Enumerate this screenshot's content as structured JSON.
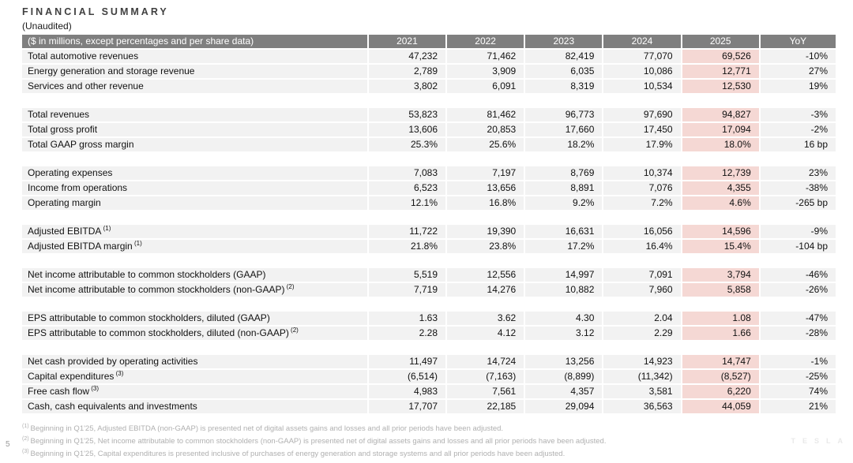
{
  "slide": {
    "title": "FINANCIAL SUMMARY",
    "subtitle": "(Unaudited)",
    "page_number": "5",
    "brand": "TESLA"
  },
  "colors": {
    "header_bg": "#7f7f7f",
    "header_text": "#ffffff",
    "row_bg": "#f2f2f2",
    "highlight_bg": "#f5d8d4",
    "text": "#1a1a1a",
    "title": "#404040",
    "footnote": "#b0b0b0",
    "brand": "#e9e9e9"
  },
  "table": {
    "header": {
      "label": "($ in millions, except percentages and per share data)",
      "years": [
        "2021",
        "2022",
        "2023",
        "2024",
        "2025",
        "YoY"
      ]
    },
    "rows": [
      {
        "type": "data",
        "label": "Total automotive revenues",
        "sup": "",
        "values": [
          "47,232",
          "71,462",
          "82,419",
          "77,070",
          "69,526",
          "-10%"
        ]
      },
      {
        "type": "data",
        "label": "Energy generation and storage revenue",
        "sup": "",
        "values": [
          "2,789",
          "3,909",
          "6,035",
          "10,086",
          "12,771",
          "27%"
        ]
      },
      {
        "type": "data",
        "label": "Services and other revenue",
        "sup": "",
        "values": [
          "3,802",
          "6,091",
          "8,319",
          "10,534",
          "12,530",
          "19%"
        ]
      },
      {
        "type": "spacer"
      },
      {
        "type": "data",
        "label": "Total revenues",
        "sup": "",
        "values": [
          "53,823",
          "81,462",
          "96,773",
          "97,690",
          "94,827",
          "-3%"
        ]
      },
      {
        "type": "data",
        "label": "Total gross profit",
        "sup": "",
        "values": [
          "13,606",
          "20,853",
          "17,660",
          "17,450",
          "17,094",
          "-2%"
        ]
      },
      {
        "type": "data",
        "label": "Total GAAP gross margin",
        "sup": "",
        "values": [
          "25.3%",
          "25.6%",
          "18.2%",
          "17.9%",
          "18.0%",
          "16 bp"
        ]
      },
      {
        "type": "spacer"
      },
      {
        "type": "data",
        "label": "Operating expenses",
        "sup": "",
        "values": [
          "7,083",
          "7,197",
          "8,769",
          "10,374",
          "12,739",
          "23%"
        ]
      },
      {
        "type": "data",
        "label": "Income from operations",
        "sup": "",
        "values": [
          "6,523",
          "13,656",
          "8,891",
          "7,076",
          "4,355",
          "-38%"
        ]
      },
      {
        "type": "data",
        "label": "Operating margin",
        "sup": "",
        "values": [
          "12.1%",
          "16.8%",
          "9.2%",
          "7.2%",
          "4.6%",
          "-265 bp"
        ]
      },
      {
        "type": "spacer"
      },
      {
        "type": "data",
        "label": "Adjusted EBITDA",
        "sup": "(1)",
        "values": [
          "11,722",
          "19,390",
          "16,631",
          "16,056",
          "14,596",
          "-9%"
        ]
      },
      {
        "type": "data",
        "label": "Adjusted EBITDA margin",
        "sup": "(1)",
        "values": [
          "21.8%",
          "23.8%",
          "17.2%",
          "16.4%",
          "15.4%",
          "-104 bp"
        ]
      },
      {
        "type": "spacer"
      },
      {
        "type": "data",
        "label": "Net income attributable to common stockholders (GAAP)",
        "sup": "",
        "values": [
          "5,519",
          "12,556",
          "14,997",
          "7,091",
          "3,794",
          "-46%"
        ]
      },
      {
        "type": "data",
        "label": "Net income attributable to common stockholders (non-GAAP)",
        "sup": "(2)",
        "values": [
          "7,719",
          "14,276",
          "10,882",
          "7,960",
          "5,858",
          "-26%"
        ]
      },
      {
        "type": "spacer"
      },
      {
        "type": "data",
        "label": "EPS attributable to common stockholders, diluted (GAAP)",
        "sup": "",
        "values": [
          "1.63",
          "3.62",
          "4.30",
          "2.04",
          "1.08",
          "-47%"
        ]
      },
      {
        "type": "data",
        "label": "EPS attributable to common stockholders, diluted (non-GAAP)",
        "sup": "(2)",
        "values": [
          "2.28",
          "4.12",
          "3.12",
          "2.29",
          "1.66",
          "-28%"
        ]
      },
      {
        "type": "spacer"
      },
      {
        "type": "data",
        "label": "Net cash provided by operating activities",
        "sup": "",
        "values": [
          "11,497",
          "14,724",
          "13,256",
          "14,923",
          "14,747",
          "-1%"
        ]
      },
      {
        "type": "data",
        "label": "Capital expenditures",
        "sup": "(3)",
        "values": [
          "(6,514)",
          "(7,163)",
          "(8,899)",
          "(11,342)",
          "(8,527)",
          "-25%"
        ]
      },
      {
        "type": "data",
        "label": "Free cash flow",
        "sup": "(3)",
        "values": [
          "4,983",
          "7,561",
          "4,357",
          "3,581",
          "6,220",
          "74%"
        ]
      },
      {
        "type": "data",
        "label": "Cash, cash equivalents and investments",
        "sup": "",
        "values": [
          "17,707",
          "22,185",
          "29,094",
          "36,563",
          "44,059",
          "21%"
        ]
      }
    ]
  },
  "footnotes": [
    {
      "marker": "(1)",
      "text": "Beginning in Q1'25, Adjusted EBITDA (non-GAAP) is presented net of digital assets gains and losses and all prior periods have been adjusted."
    },
    {
      "marker": "(2)",
      "text": "Beginning in Q1'25, Net income attributable to common stockholders (non-GAAP) is presented net of digital assets gains and losses and all prior periods have been adjusted."
    },
    {
      "marker": "(3)",
      "text": "Beginning in Q1'25, Capital expenditures is presented inclusive of purchases of energy generation and storage systems and all prior periods have been adjusted."
    }
  ]
}
